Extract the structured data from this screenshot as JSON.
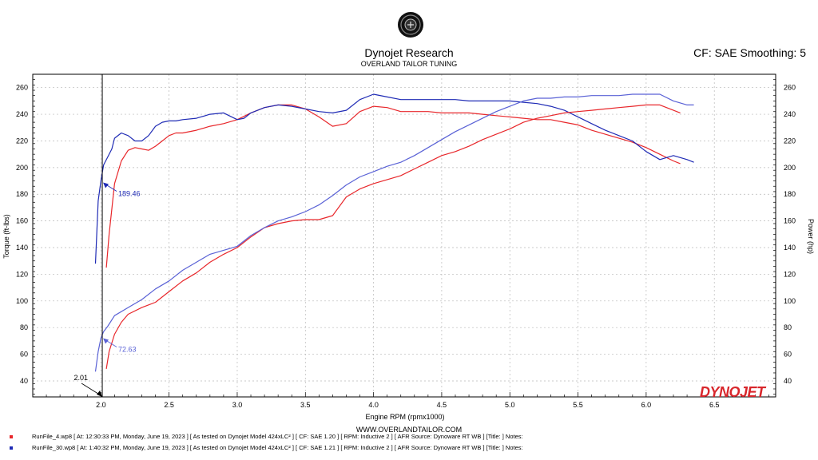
{
  "header": {
    "title": "Dynojet Research",
    "subtitle": "OVERLAND TAILOR TUNING",
    "cf_smoothing": "CF: SAE Smoothing: 5",
    "website": "WWW.OVERLANDTAILOR.COM",
    "brand": "DYNOJET"
  },
  "runs": [
    {
      "color": "#e8272b",
      "text": "RunFile_4.wp8 [ At: 12:30:33 PM, Monday, June 19, 2023 ] [ As tested on Dynojet Model 424xLC² ] [ CF: SAE 1.20 ] [ RPM: Inductive 2 ] [ AFR Source: Dynoware RT WB ] [Title: ]  Notes:"
    },
    {
      "color": "#1f2bb5",
      "text": "RunFile_30.wp8 [ At: 1:40:32 PM, Monday, June 19, 2023 ] [ As tested on Dynojet Model 424xLC² ] [ CF: SAE 1.21 ] [ RPM: Inductive 2 ] [ AFR Source: Dynoware RT WB ] [Title: ]  Notes:"
    }
  ],
  "chart_data": {
    "type": "line",
    "xlabel": "Engine RPM (rpmx1000)",
    "ylabel_left": "Torque (ft-lbs)",
    "ylabel_right": "Power (hp)",
    "xlim": [
      1.5,
      6.95
    ],
    "ylim": [
      28,
      270
    ],
    "xticks": [
      "2.0",
      "2.5",
      "3.0",
      "3.5",
      "4.0",
      "4.5",
      "5.0",
      "5.5",
      "6.0",
      "6.5"
    ],
    "yticks": [
      "40",
      "60",
      "80",
      "100",
      "120",
      "140",
      "160",
      "180",
      "200",
      "220",
      "240",
      "260"
    ],
    "cursor_rpm": "2.01",
    "cursor_labels": [
      {
        "text": "189.46",
        "x": 2.01,
        "y": 189.46,
        "color": "#1f2bb5"
      },
      {
        "text": "72.63",
        "x": 2.01,
        "y": 72.63,
        "color": "#5a62d6"
      }
    ],
    "series": [
      {
        "name": "Torque — RunFile_4",
        "color": "#e8272b",
        "x": [
          2.04,
          2.06,
          2.1,
          2.15,
          2.2,
          2.25,
          2.3,
          2.35,
          2.4,
          2.45,
          2.5,
          2.55,
          2.6,
          2.7,
          2.8,
          2.9,
          3.0,
          3.1,
          3.2,
          3.3,
          3.4,
          3.5,
          3.6,
          3.7,
          3.8,
          3.9,
          4.0,
          4.1,
          4.2,
          4.3,
          4.4,
          4.5,
          4.6,
          4.7,
          4.8,
          4.9,
          5.0,
          5.1,
          5.2,
          5.3,
          5.4,
          5.5,
          5.6,
          5.7,
          5.8,
          5.9,
          6.0,
          6.1,
          6.2,
          6.25
        ],
        "y": [
          125,
          150,
          188,
          205,
          213,
          215,
          214,
          213,
          216,
          220,
          224,
          226,
          226,
          228,
          231,
          233,
          236,
          241,
          245,
          247,
          247,
          244,
          238,
          231,
          233,
          242,
          246,
          245,
          242,
          242,
          242,
          241,
          241,
          241,
          240,
          239,
          238,
          237,
          236,
          236,
          234,
          232,
          228,
          225,
          222,
          219,
          215,
          210,
          205,
          203
        ]
      },
      {
        "name": "Torque — RunFile_30",
        "color": "#1f2bb5",
        "x": [
          1.96,
          1.98,
          2.0,
          2.02,
          2.05,
          2.08,
          2.1,
          2.15,
          2.2,
          2.25,
          2.3,
          2.35,
          2.4,
          2.45,
          2.5,
          2.55,
          2.6,
          2.7,
          2.8,
          2.9,
          3.0,
          3.05,
          3.1,
          3.2,
          3.3,
          3.4,
          3.5,
          3.6,
          3.7,
          3.8,
          3.9,
          4.0,
          4.1,
          4.2,
          4.3,
          4.4,
          4.5,
          4.6,
          4.7,
          4.8,
          4.9,
          5.0,
          5.1,
          5.2,
          5.3,
          5.4,
          5.5,
          5.6,
          5.7,
          5.8,
          5.9,
          6.0,
          6.1,
          6.2,
          6.3,
          6.35
        ],
        "y": [
          128,
          175,
          190,
          202,
          208,
          214,
          222,
          226,
          224,
          220,
          220,
          224,
          231,
          234,
          235,
          235,
          236,
          237,
          240,
          241,
          236,
          237,
          241,
          245,
          247,
          246,
          244,
          242,
          241,
          243,
          251,
          255,
          253,
          251,
          251,
          251,
          251,
          251,
          250,
          250,
          250,
          250,
          249,
          248,
          246,
          243,
          238,
          233,
          228,
          224,
          220,
          212,
          206,
          209,
          206,
          204
        ]
      },
      {
        "name": "Power — RunFile_4",
        "color": "#e8272b",
        "x": [
          2.04,
          2.06,
          2.1,
          2.15,
          2.2,
          2.3,
          2.4,
          2.5,
          2.6,
          2.7,
          2.8,
          2.9,
          3.0,
          3.1,
          3.2,
          3.3,
          3.4,
          3.5,
          3.6,
          3.7,
          3.8,
          3.9,
          4.0,
          4.1,
          4.2,
          4.3,
          4.4,
          4.5,
          4.6,
          4.7,
          4.8,
          4.9,
          5.0,
          5.1,
          5.2,
          5.3,
          5.4,
          5.5,
          5.6,
          5.7,
          5.8,
          5.9,
          6.0,
          6.1,
          6.2,
          6.25
        ],
        "y": [
          49,
          62,
          75,
          84,
          90,
          95,
          99,
          107,
          115,
          121,
          129,
          135,
          140,
          148,
          155,
          158,
          160,
          161,
          161,
          164,
          178,
          184,
          188,
          191,
          194,
          199,
          204,
          209,
          212,
          216,
          221,
          225,
          229,
          234,
          237,
          239,
          241,
          242,
          243,
          244,
          245,
          246,
          247,
          247,
          243,
          241
        ]
      },
      {
        "name": "Power — RunFile_30",
        "color": "#5a62d6",
        "x": [
          1.96,
          1.98,
          2.0,
          2.02,
          2.05,
          2.1,
          2.2,
          2.3,
          2.4,
          2.5,
          2.6,
          2.7,
          2.8,
          2.9,
          3.0,
          3.1,
          3.2,
          3.3,
          3.4,
          3.5,
          3.6,
          3.7,
          3.8,
          3.9,
          4.0,
          4.1,
          4.2,
          4.3,
          4.4,
          4.5,
          4.6,
          4.7,
          4.8,
          4.9,
          5.0,
          5.1,
          5.2,
          5.3,
          5.4,
          5.5,
          5.6,
          5.7,
          5.8,
          5.9,
          6.0,
          6.1,
          6.2,
          6.3,
          6.35
        ],
        "y": [
          47,
          62,
          72,
          77,
          81,
          89,
          95,
          101,
          109,
          115,
          123,
          129,
          135,
          138,
          141,
          149,
          155,
          160,
          163,
          167,
          172,
          179,
          187,
          193,
          197,
          201,
          204,
          209,
          215,
          221,
          227,
          232,
          237,
          242,
          246,
          250,
          252,
          252,
          253,
          253,
          254,
          254,
          254,
          255,
          255,
          255,
          250,
          247,
          247
        ]
      }
    ]
  }
}
